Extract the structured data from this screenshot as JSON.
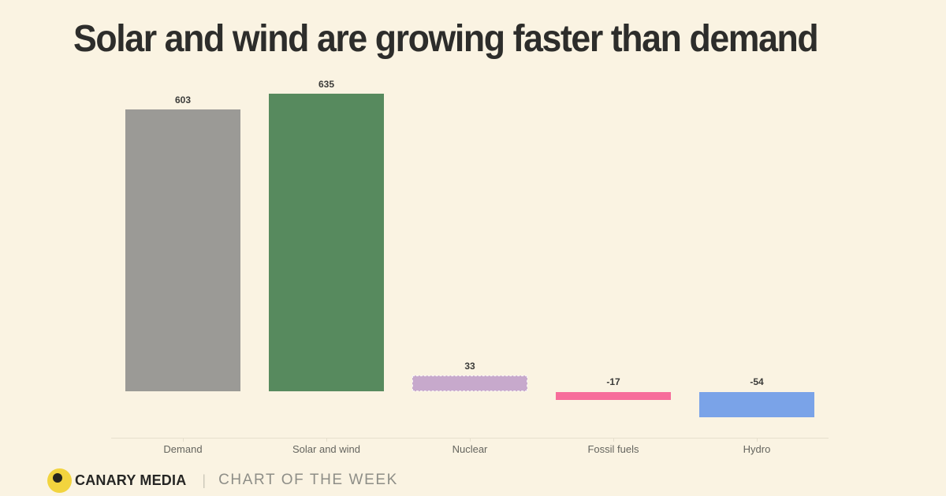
{
  "page": {
    "background": "#faf3e2"
  },
  "header": {
    "title": "Solar and wind are growing faster than demand",
    "title_color": "#2d2d2b"
  },
  "chart_data": {
    "type": "bar",
    "title": "Solar and wind are growing faster than demand",
    "categories": [
      "Demand",
      "Solar and wind",
      "Nuclear",
      "Fossil fuels",
      "Hydro"
    ],
    "values": [
      603,
      635,
      33,
      -17,
      -54
    ],
    "value_labels": [
      "603",
      "635",
      "33",
      "-17",
      "-54"
    ],
    "bar_colors": [
      "#9b9a96",
      "#578a5e",
      "#c7a9cc",
      "#f76d9b",
      "#7aa3e8"
    ],
    "bar_styles": [
      "solid",
      "solid",
      "dashed-outline",
      "solid",
      "solid"
    ],
    "xlabel": "",
    "ylabel": "",
    "ylim": [
      -54,
      635
    ],
    "baseline": 0,
    "grid": false,
    "legend": false,
    "value_label_color": "#3b3b39",
    "category_label_color": "#65655f",
    "axis_color": "rgba(60,50,20,0.10)"
  },
  "footer": {
    "brand": "CANARY MEDIA",
    "separator": "|",
    "series_label": "CHART OF THE WEEK",
    "logo_color": "#f2d43e",
    "logo_dot_color": "#26261e"
  }
}
